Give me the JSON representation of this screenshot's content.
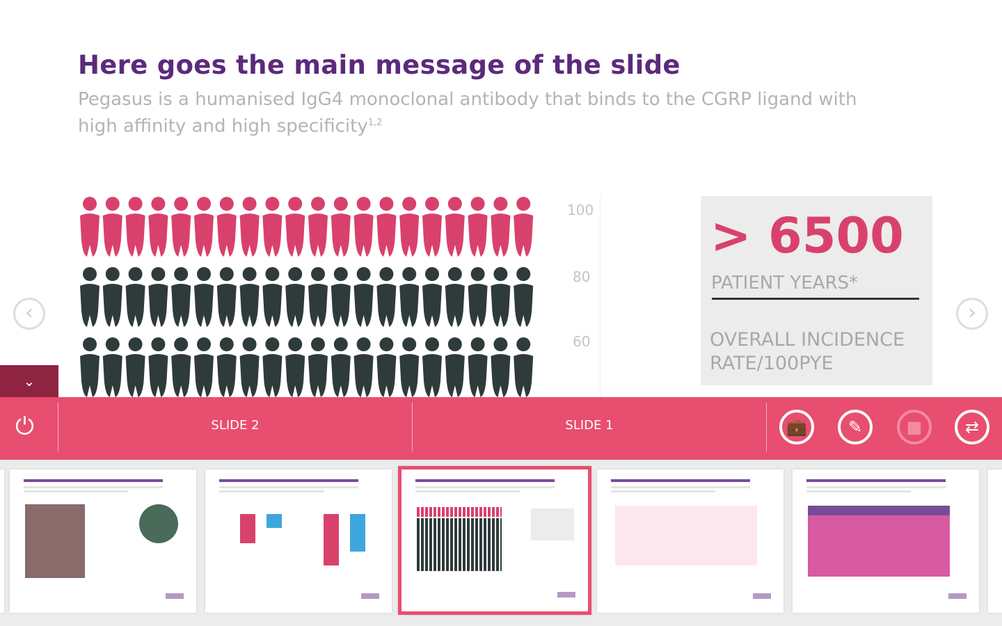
{
  "slide": {
    "title": "Here goes the main message of the slide",
    "subtitle": "Pegasus is a humanised IgG4 monoclonal antibody that binds to the CGRP ligand with high affinity and high specificity",
    "subtitle_ref": "1,2"
  },
  "pictogram": {
    "columns": 20,
    "rows": [
      {
        "color": "#d9416d"
      },
      {
        "color": "#2f3b3b"
      },
      {
        "color": "#2f3b3b"
      }
    ]
  },
  "axis_ticks": [
    "100",
    "80",
    "60"
  ],
  "stat": {
    "value": "> 6500",
    "label": "PATIENT YEARS*",
    "footer": "OVERALL INCIDENCE RATE/100PYE"
  },
  "nav": {
    "prev": "‹",
    "next": "›",
    "collapse": "⌄"
  },
  "toolbar": {
    "power": "⏻",
    "slides": [
      "SLIDE 2",
      "SLIDE 1"
    ],
    "icons": {
      "briefcase": "💼",
      "edit": "✎",
      "video": "■",
      "swap": "⇄"
    }
  },
  "colors": {
    "accent": "#e84e6f",
    "brand": "#5b2a7c"
  },
  "thumbnails": {
    "selected_index": 2,
    "count": 6
  }
}
